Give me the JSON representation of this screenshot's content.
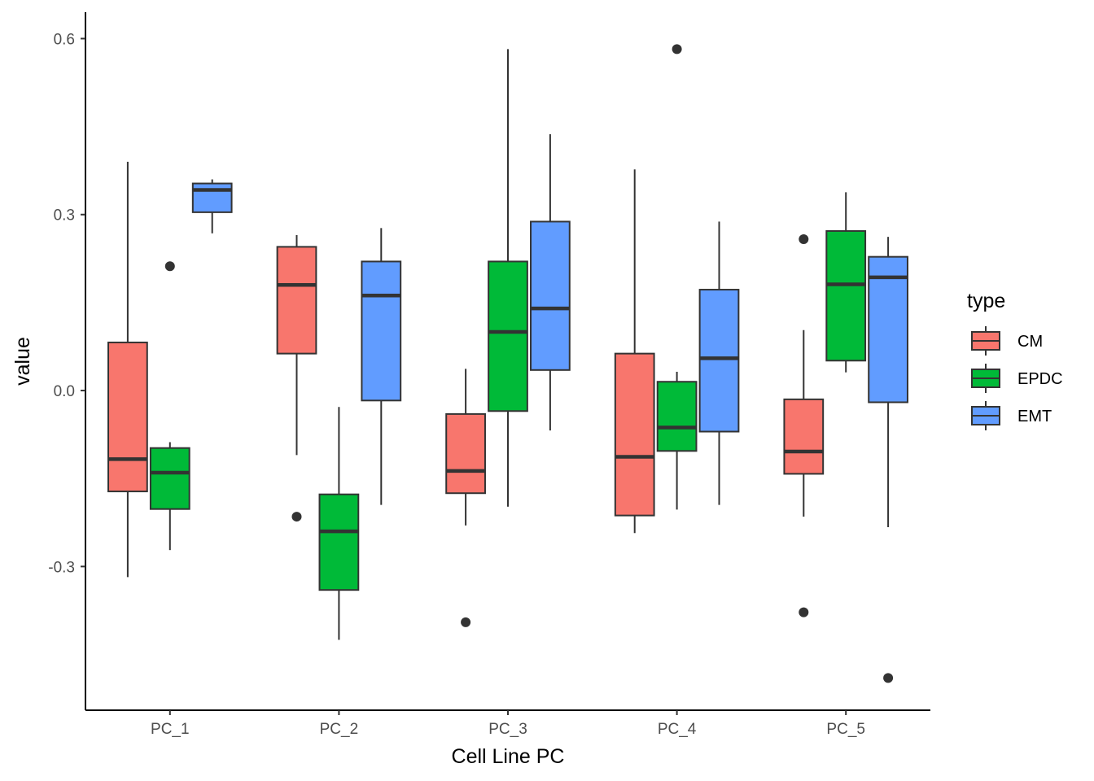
{
  "chart_data": {
    "type": "boxplot",
    "title": "",
    "xlabel": "Cell Line PC",
    "ylabel": "value",
    "categories": [
      "PC_1",
      "PC_2",
      "PC_3",
      "PC_4",
      "PC_5"
    ],
    "y_ticks": [
      -0.3,
      0.0,
      0.3,
      0.6
    ],
    "y_tick_labels": [
      "-0.3",
      "0.0",
      "0.3",
      "0.6"
    ],
    "ylim": [
      -0.545,
      0.645
    ],
    "grid": false,
    "legend": {
      "title": "type",
      "position": "right"
    },
    "series": [
      {
        "name": "CM",
        "color": "#F8766D",
        "boxes": [
          {
            "whisker_low": -0.318,
            "q1": -0.172,
            "median": -0.117,
            "q3": 0.082,
            "whisker_high": 0.39,
            "outliers": []
          },
          {
            "whisker_low": -0.11,
            "q1": 0.063,
            "median": 0.18,
            "q3": 0.245,
            "whisker_high": 0.265,
            "outliers": [
              -0.215
            ]
          },
          {
            "whisker_low": -0.23,
            "q1": -0.175,
            "median": -0.137,
            "q3": -0.04,
            "whisker_high": 0.037,
            "outliers": [
              -0.395
            ]
          },
          {
            "whisker_low": -0.243,
            "q1": -0.213,
            "median": -0.113,
            "q3": 0.063,
            "whisker_high": 0.377,
            "outliers": []
          },
          {
            "whisker_low": -0.215,
            "q1": -0.142,
            "median": -0.104,
            "q3": -0.015,
            "whisker_high": 0.103,
            "outliers": [
              0.258,
              -0.378
            ]
          }
        ]
      },
      {
        "name": "EPDC",
        "color": "#00BA38",
        "boxes": [
          {
            "whisker_low": -0.272,
            "q1": -0.202,
            "median": -0.14,
            "q3": -0.098,
            "whisker_high": -0.088,
            "outliers": [
              0.212
            ]
          },
          {
            "whisker_low": -0.425,
            "q1": -0.34,
            "median": -0.24,
            "q3": -0.177,
            "whisker_high": -0.028,
            "outliers": []
          },
          {
            "whisker_low": -0.198,
            "q1": -0.035,
            "median": 0.1,
            "q3": 0.22,
            "whisker_high": 0.582,
            "outliers": []
          },
          {
            "whisker_low": -0.203,
            "q1": -0.103,
            "median": -0.063,
            "q3": 0.015,
            "whisker_high": 0.032,
            "outliers": [
              0.582
            ]
          },
          {
            "whisker_low": 0.031,
            "q1": 0.051,
            "median": 0.181,
            "q3": 0.272,
            "whisker_high": 0.338,
            "outliers": []
          }
        ]
      },
      {
        "name": "EMT",
        "color": "#619CFF",
        "boxes": [
          {
            "whisker_low": 0.268,
            "q1": 0.304,
            "median": 0.342,
            "q3": 0.353,
            "whisker_high": 0.36,
            "outliers": []
          },
          {
            "whisker_low": -0.195,
            "q1": -0.017,
            "median": 0.162,
            "q3": 0.22,
            "whisker_high": 0.277,
            "outliers": []
          },
          {
            "whisker_low": -0.068,
            "q1": 0.035,
            "median": 0.14,
            "q3": 0.288,
            "whisker_high": 0.437,
            "outliers": []
          },
          {
            "whisker_low": -0.195,
            "q1": -0.07,
            "median": 0.055,
            "q3": 0.172,
            "whisker_high": 0.288,
            "outliers": []
          },
          {
            "whisker_low": -0.233,
            "q1": -0.02,
            "median": 0.193,
            "q3": 0.228,
            "whisker_high": 0.262,
            "outliers": [
              -0.49
            ]
          }
        ]
      }
    ]
  }
}
